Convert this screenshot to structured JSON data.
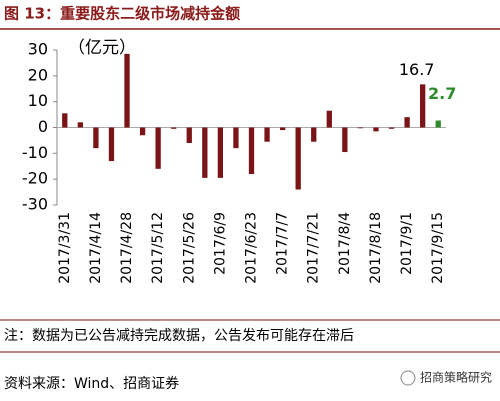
{
  "chart_data": {
    "type": "bar",
    "title": "图 13：重要股东二级市场减持金额",
    "unit_label": "（亿元）",
    "categories": [
      "2017/3/31",
      null,
      "2017/4/14",
      null,
      "2017/4/28",
      null,
      "2017/5/12",
      null,
      "2017/5/26",
      null,
      "2017/6/9",
      null,
      "2017/6/23",
      null,
      "2017/7/7",
      null,
      "2017/7/21",
      null,
      "2017/8/4",
      null,
      "2017/8/18",
      null,
      "2017/9/1",
      null,
      "2017/9/15"
    ],
    "values": [
      5.5,
      2,
      -8,
      -13,
      28.5,
      -3,
      -16,
      -0.5,
      -6,
      -19.5,
      -19.5,
      -8,
      -18,
      -5.5,
      -1,
      -24,
      -5.5,
      6.5,
      -9.5,
      -0.3,
      -1.5,
      -0.5,
      4,
      16.7,
      2.7
    ],
    "value_labels": [
      null,
      null,
      null,
      null,
      null,
      null,
      null,
      null,
      null,
      null,
      null,
      null,
      null,
      null,
      null,
      null,
      null,
      null,
      null,
      null,
      null,
      null,
      null,
      "16.7",
      "2.7"
    ],
    "bar_colors": [
      "#7b1416",
      "#7b1416",
      "#7b1416",
      "#7b1416",
      "#7b1416",
      "#7b1416",
      "#7b1416",
      "#7b1416",
      "#7b1416",
      "#7b1416",
      "#7b1416",
      "#7b1416",
      "#7b1416",
      "#7b1416",
      "#7b1416",
      "#7b1416",
      "#7b1416",
      "#7b1416",
      "#7b1416",
      "#7b1416",
      "#7b1416",
      "#7b1416",
      "#7b1416",
      "#7b1416",
      "#2e8b2e"
    ],
    "ylim": [
      -30,
      30
    ],
    "yticks": [
      -30,
      -20,
      -10,
      0,
      10,
      20,
      30
    ],
    "note": "注：数据为已公告减持完成数据，公告发布可能存在滞后",
    "source": "资料来源：Wind、招商证券",
    "brand": "招商策略研究"
  }
}
